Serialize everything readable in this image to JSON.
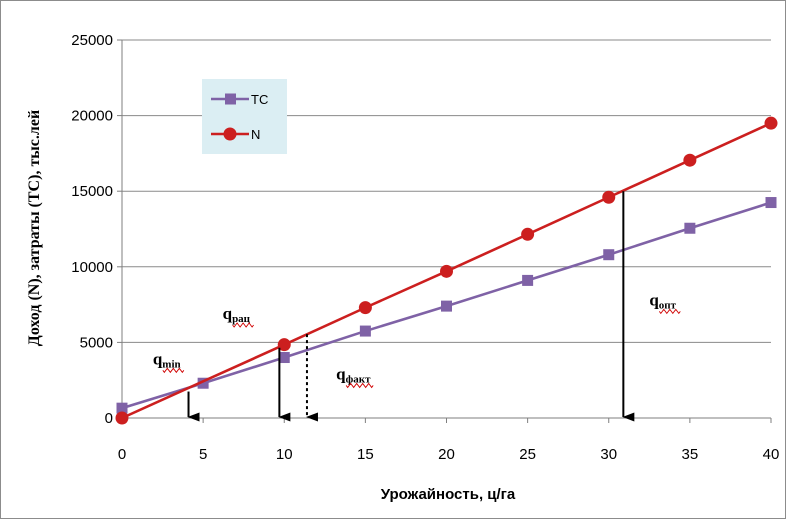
{
  "chart_data": {
    "type": "line",
    "title": "",
    "xlabel": "Урожайность, ц/га",
    "ylabel": "Доход (N), затраты (ТС),  тыс.лей",
    "xlim": [
      0,
      40
    ],
    "ylim": [
      0,
      25000
    ],
    "x_ticks": [
      0,
      5,
      10,
      15,
      20,
      25,
      30,
      35,
      40
    ],
    "y_ticks": [
      0,
      5000,
      10000,
      15000,
      20000,
      25000
    ],
    "grid": "horizontal",
    "legend_placement": "top-left",
    "series": [
      {
        "name": "TC",
        "color": "#7f62a6",
        "marker": "square",
        "x": [
          0,
          5,
          10,
          15,
          20,
          25,
          30,
          35,
          40
        ],
        "y": [
          650,
          2300,
          4000,
          5750,
          7400,
          9100,
          10800,
          12550,
          14250
        ]
      },
      {
        "name": "N",
        "color": "#cc1f1f",
        "marker": "circle",
        "x": [
          0,
          10,
          15,
          20,
          25,
          30,
          35,
          40
        ],
        "y": [
          0,
          4850,
          7300,
          9700,
          12150,
          14600,
          17050,
          19500
        ]
      }
    ],
    "annotations": [
      {
        "main": "q",
        "sub": "min",
        "text_x": 1.9,
        "text_y": 3550
      },
      {
        "main": "q",
        "sub": "рац",
        "text_x": 6.2,
        "text_y": 6550
      },
      {
        "main": "q",
        "sub": "факт",
        "text_x": 13.2,
        "text_y": 2550
      },
      {
        "main": "q",
        "sub": "опт",
        "text_x": 32.5,
        "text_y": 7450
      }
    ],
    "arrows": [
      {
        "x": 4.1,
        "y_from": 1750,
        "y_to": 0,
        "style": "solid"
      },
      {
        "x": 9.7,
        "y_from": 4650,
        "y_to": 0,
        "style": "solid"
      },
      {
        "x": 11.4,
        "y_from": 5550,
        "y_to": 0,
        "style": "dotted"
      },
      {
        "x": 30.9,
        "y_from": 15000,
        "y_to": 0,
        "style": "solid"
      }
    ]
  }
}
